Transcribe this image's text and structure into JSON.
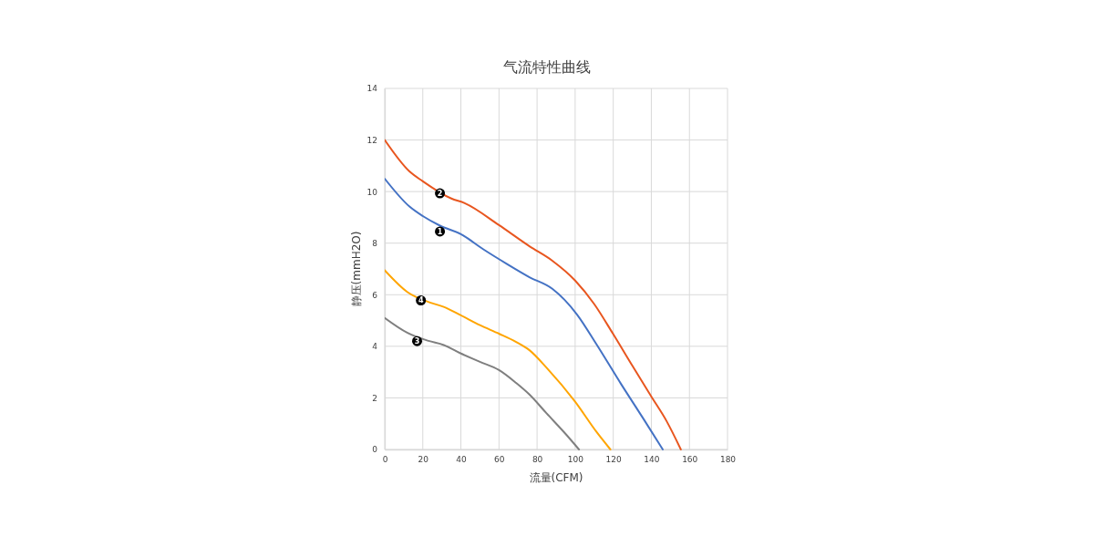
{
  "chart_data": {
    "type": "line",
    "title": "气流特性曲线",
    "xlabel": "流量(CFM)",
    "ylabel": "静压(mmH2O)",
    "xlim": [
      0,
      180
    ],
    "xticks": [
      0,
      20,
      40,
      60,
      80,
      100,
      120,
      140,
      160,
      180
    ],
    "ylim": [
      0,
      14
    ],
    "yticks": [
      0,
      2,
      4,
      6,
      8,
      10,
      12,
      14
    ],
    "grid": true,
    "series": [
      {
        "color": "#4472c4",
        "x": [
          0,
          13,
          20,
          29,
          40,
          52,
          64,
          76,
          88,
          101,
          111,
          124,
          136,
          146
        ],
        "values": [
          10.5,
          9.42,
          9.05,
          8.68,
          8.35,
          7.75,
          7.2,
          6.68,
          6.23,
          5.23,
          4.1,
          2.55,
          1.17,
          0
        ]
      },
      {
        "color": "#e8561f",
        "x": [
          0,
          13,
          20,
          35,
          42,
          60,
          76,
          88,
          100,
          110,
          120,
          130,
          140,
          148,
          155.5
        ],
        "values": [
          12,
          10.78,
          10.4,
          9.73,
          9.55,
          8.7,
          7.88,
          7.32,
          6.55,
          5.64,
          4.47,
          3.25,
          2.05,
          1.1,
          0
        ]
      },
      {
        "color": "#7f7f7f",
        "x": [
          0,
          12,
          23,
          31,
          40,
          50,
          60,
          69,
          76,
          85,
          95,
          102
        ],
        "values": [
          5.1,
          4.52,
          4.21,
          4.05,
          3.72,
          3.4,
          3.08,
          2.58,
          2.13,
          1.4,
          0.6,
          0
        ]
      },
      {
        "color": "#ffa500",
        "x": [
          0,
          12,
          25,
          31,
          40,
          50,
          60,
          69,
          76,
          85,
          100,
          111,
          118.5
        ],
        "values": [
          6.95,
          6.1,
          5.67,
          5.53,
          5.2,
          4.82,
          4.49,
          4.17,
          3.85,
          3.17,
          1.85,
          0.7,
          0
        ]
      }
    ],
    "annotations": [
      {
        "text": "1",
        "x": 29,
        "y": 8.45
      },
      {
        "text": "2",
        "x": 29,
        "y": 9.93
      },
      {
        "text": "3",
        "x": 17,
        "y": 4.2
      },
      {
        "text": "4",
        "x": 19,
        "y": 5.78
      }
    ]
  }
}
